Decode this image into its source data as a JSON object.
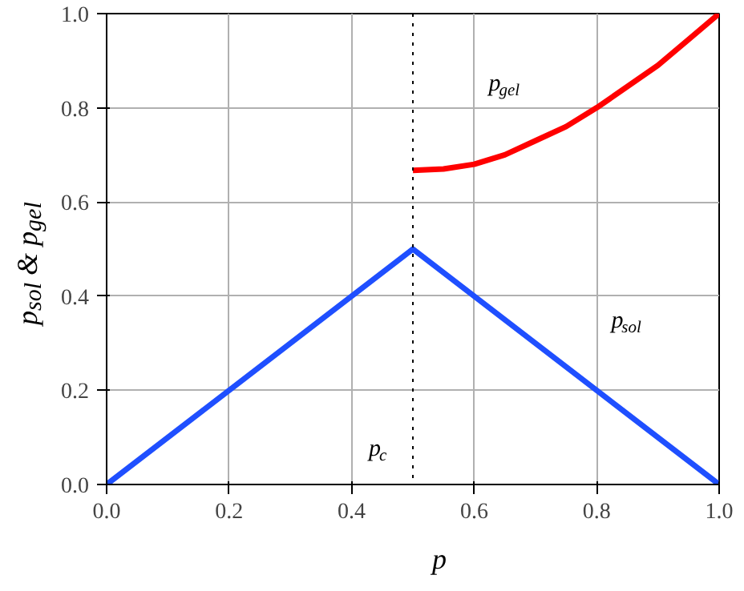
{
  "chart_data": {
    "type": "line",
    "xlabel": "p",
    "ylabel": "p$_{sol}$ & p$_{gel}$",
    "series": [
      {
        "name": "p$_{sol}$",
        "color": "#1f4fff",
        "x": [
          0.0,
          0.5,
          1.0
        ],
        "values": [
          0.0,
          0.5,
          0.0
        ]
      },
      {
        "name": "p$_{gel}$",
        "color": "#ff0000",
        "x": [
          0.5,
          0.55,
          0.6,
          0.65,
          0.7,
          0.75,
          0.8,
          0.85,
          0.9,
          0.95,
          1.0
        ],
        "values": [
          0.667,
          0.67,
          0.68,
          0.7,
          0.73,
          0.76,
          0.8,
          0.845,
          0.89,
          0.945,
          1.0
        ]
      }
    ],
    "xlim": [
      0,
      1
    ],
    "ylim": [
      0,
      1
    ],
    "xticks": [
      {
        "value": 0,
        "label": "0.0"
      },
      {
        "value": 0.2,
        "label": "0.2"
      },
      {
        "value": 0.4,
        "label": "0.4"
      },
      {
        "value": 0.6,
        "label": "0.6"
      },
      {
        "value": 0.8,
        "label": "0.8"
      },
      {
        "value": 1,
        "label": "1.0"
      }
    ],
    "yticks": [
      {
        "value": 0,
        "label": "0.0"
      },
      {
        "value": 0.2,
        "label": "0.2"
      },
      {
        "value": 0.4,
        "label": "0.4"
      },
      {
        "value": 0.6,
        "label": "0.6"
      },
      {
        "value": 0.8,
        "label": "0.8"
      },
      {
        "value": 1,
        "label": "1.0"
      }
    ],
    "ref_lines": [
      {
        "axis": "x",
        "value": 0.5,
        "label": "p$_{c}$",
        "color": "#000000",
        "line_style": "dotted"
      }
    ],
    "grid": true,
    "legend": false,
    "marker": "none",
    "line_style": "solid"
  }
}
